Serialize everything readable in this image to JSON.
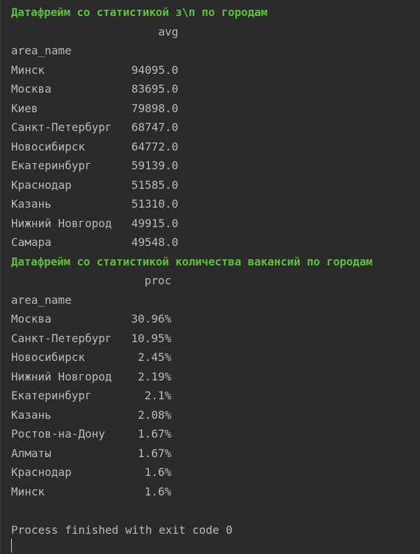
{
  "table1": {
    "heading": "Датафрейм со статистикой з\\п по городам",
    "column": "avg",
    "index_name": "area_name",
    "rows": [
      {
        "city": "Минск",
        "value": "94095.0"
      },
      {
        "city": "Москва",
        "value": "83695.0"
      },
      {
        "city": "Киев",
        "value": "79898.0"
      },
      {
        "city": "Санкт-Петербург",
        "value": "68747.0"
      },
      {
        "city": "Новосибирск",
        "value": "64772.0"
      },
      {
        "city": "Екатеринбург",
        "value": "59139.0"
      },
      {
        "city": "Краснодар",
        "value": "51585.0"
      },
      {
        "city": "Казань",
        "value": "51310.0"
      },
      {
        "city": "Нижний Новгород",
        "value": "49915.0"
      },
      {
        "city": "Самара",
        "value": "49548.0"
      }
    ]
  },
  "table2": {
    "heading": "Датафрейм со статистикой количества вакансий по городам",
    "column": "proc",
    "index_name": "area_name",
    "rows": [
      {
        "city": "Москва",
        "value": "30.96%"
      },
      {
        "city": "Санкт-Петербург",
        "value": "10.95%"
      },
      {
        "city": "Новосибирск",
        "value": "2.45%"
      },
      {
        "city": "Нижний Новгород",
        "value": "2.19%"
      },
      {
        "city": "Екатеринбург",
        "value": "2.1%"
      },
      {
        "city": "Казань",
        "value": "2.08%"
      },
      {
        "city": "Ростов-на-Дону",
        "value": "1.67%"
      },
      {
        "city": "Алматы",
        "value": "1.67%"
      },
      {
        "city": "Краснодар",
        "value": "1.6%"
      },
      {
        "city": "Минск",
        "value": "1.6%"
      }
    ]
  },
  "process_message": "Process finished with exit code 0"
}
